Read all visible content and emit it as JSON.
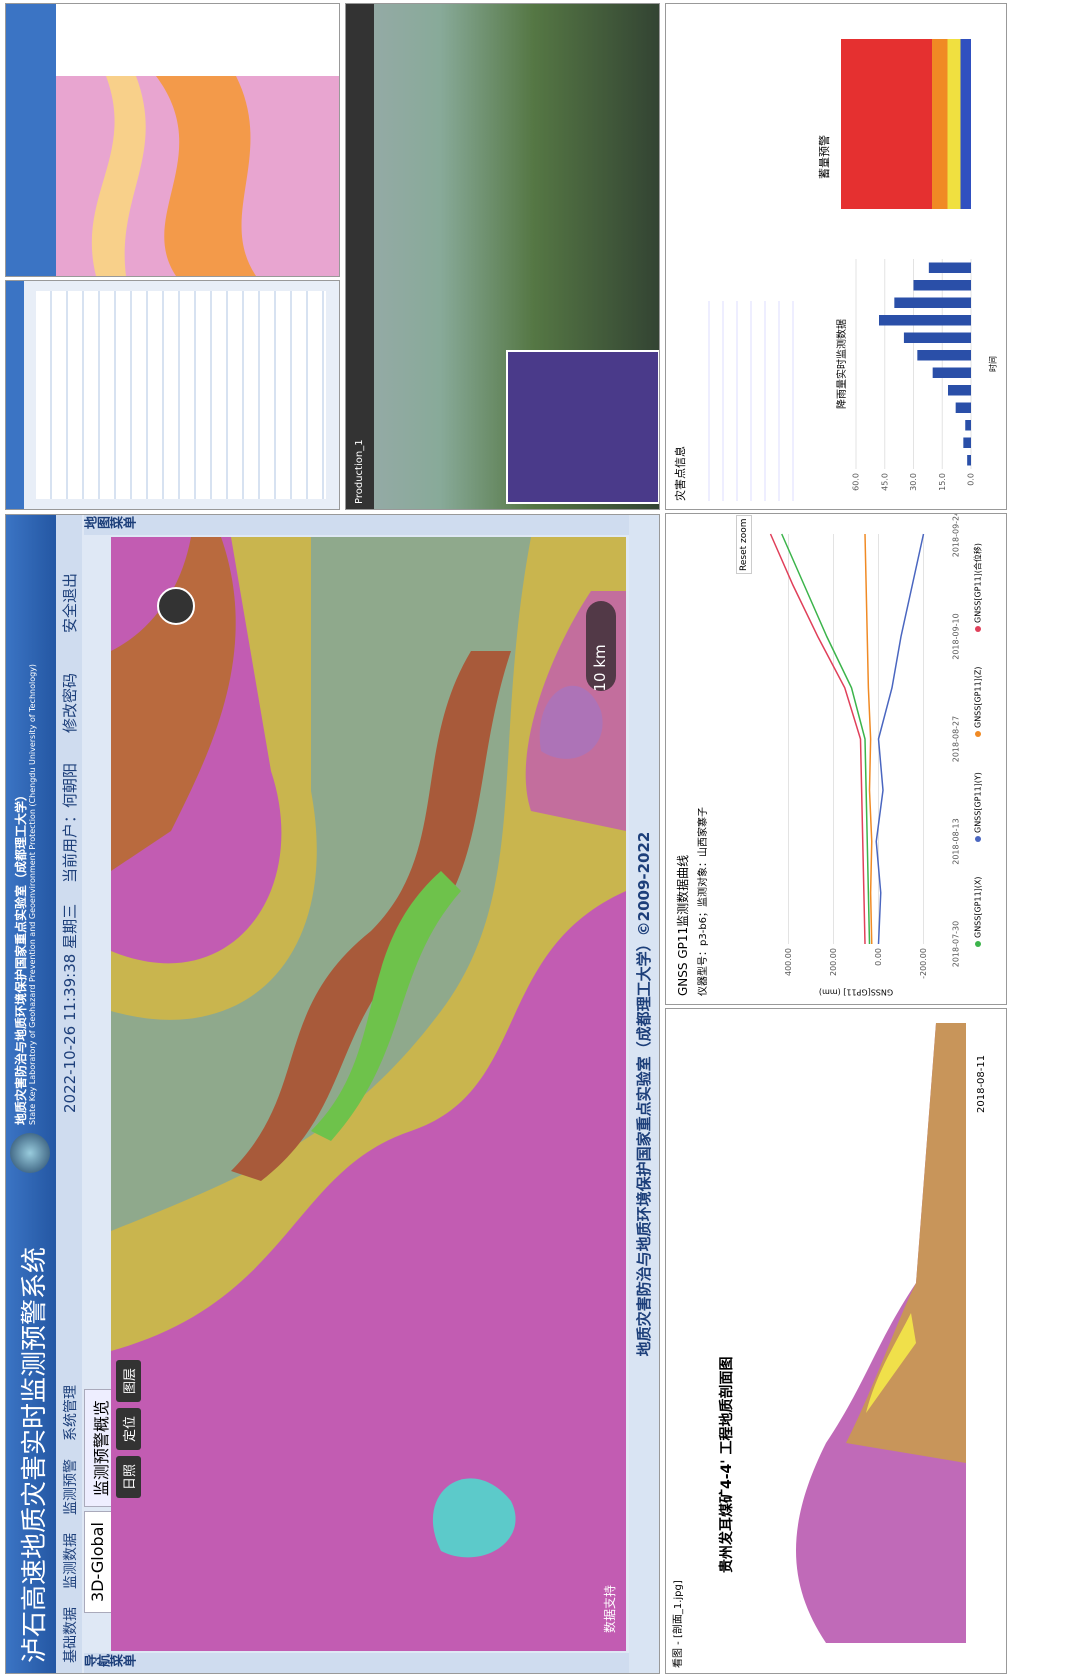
{
  "main": {
    "title": "泸石高速地质灾害实时监测预警系统",
    "lab_cn": "地质灾害防治与地质环境保护国家重点实验室（成都理工大学）",
    "lab_en": "State Key Laboratory of Geohazard Prevention and Geoenvironment Protection (Chengdu University of Technology)",
    "datetime": "2022-10-26 11:39:38 星期三",
    "user": "当前用户：何朝阳",
    "change_password": "修改密码",
    "logout": "安全退出",
    "menu": [
      "基础数据",
      "监测数据",
      "监测预警",
      "系统管理"
    ],
    "tabs": [
      "3D-Global",
      "监测预警概览"
    ],
    "toolbar": [
      "日照",
      "定位",
      "图层"
    ],
    "nav_menu": "导航菜单",
    "map_menu": "地图菜单",
    "scale": "10 km",
    "data_support": "数据支持",
    "footer": "地质灾害防治与地质环境保护国家重点实验室（成都理工大学）©2009-2022"
  },
  "viewer3d": {
    "label": "Production_1"
  },
  "profile": {
    "window_title": "看图 - [剖面_1.jpg]",
    "title": "贵州发耳煤矿4-4' 工程地质剖面图",
    "date": "2018-08-11"
  },
  "gnss": {
    "title": "GNSS GP11监测数据曲线",
    "meta": "仪器型号：p3-b6；监测对象：山西家寨子",
    "reset": "Reset zoom",
    "chart_data": {
      "type": "line",
      "y_label": "GNSS[GP11] (mm)",
      "categories": [
        "2018-07-30",
        null,
        "2018-08-13",
        null,
        "2018-08-27",
        null,
        "2018-09-10",
        null,
        "2018-09-24"
      ],
      "ylim": [
        -300,
        500
      ],
      "yticks": [
        {
          "value": -200,
          "label": "-200.00"
        },
        {
          "value": 0,
          "label": "0.00"
        },
        {
          "value": 200,
          "label": "200.00"
        },
        {
          "value": 400,
          "label": "400.00"
        }
      ],
      "grid": true,
      "series": [
        {
          "name": "GNSS[GP11](X)",
          "color": "#3cb44b",
          "values": [
            40,
            45,
            50,
            55,
            60,
            120,
            230,
            330,
            430
          ]
        },
        {
          "name": "GNSS[GP11](Y)",
          "color": "#4a66c0",
          "values": [
            0,
            -10,
            10,
            -20,
            0,
            -60,
            -100,
            -150,
            -200
          ]
        },
        {
          "name": "GNSS[GP11](Z)",
          "color": "#f08a24",
          "values": [
            30,
            35,
            30,
            40,
            35,
            45,
            50,
            55,
            60
          ]
        },
        {
          "name": "GNSS[GP11](合位移)",
          "color": "#e0405a",
          "values": [
            60,
            65,
            70,
            75,
            80,
            150,
            270,
            380,
            480
          ]
        }
      ]
    }
  },
  "rain": {
    "section": "灾害点信息",
    "warn_title": "蓄量预警",
    "chart_data": {
      "type": "bar",
      "title": "降雨量实时监测数据",
      "x_label": "时间",
      "categories": [
        null,
        null,
        null,
        null,
        null,
        null,
        null,
        null,
        null,
        null,
        null,
        null
      ],
      "values": [
        2,
        4,
        3,
        8,
        12,
        20,
        28,
        35,
        48,
        40,
        30,
        22
      ],
      "color": "#2a4fa8",
      "ylim": [
        0,
        60
      ],
      "yticks": [
        {
          "value": 0,
          "label": "0.0"
        },
        {
          "value": 15,
          "label": "15.0"
        },
        {
          "value": 30,
          "label": "30.0"
        },
        {
          "value": 45,
          "label": "45.0"
        },
        {
          "value": 60,
          "label": "60.0"
        }
      ],
      "grid": true
    }
  }
}
